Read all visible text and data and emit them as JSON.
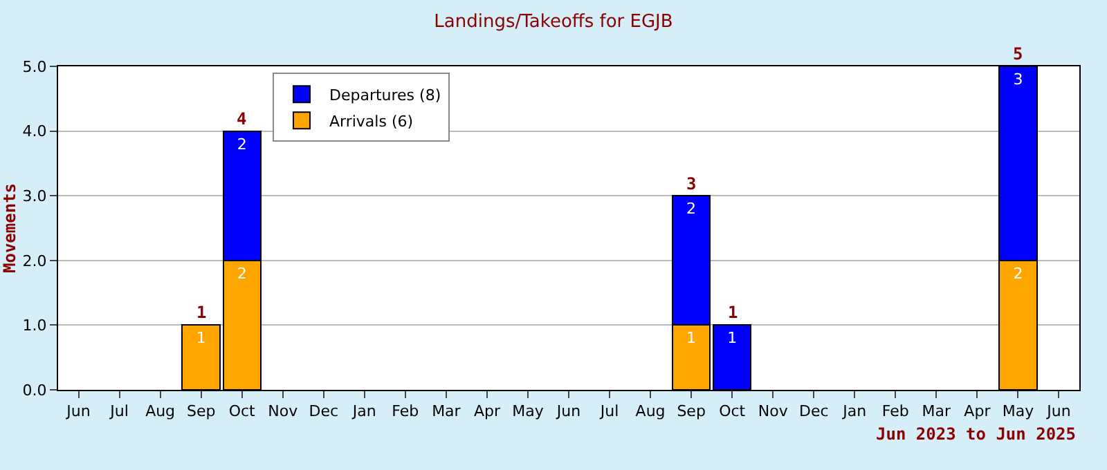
{
  "chart_data": {
    "type": "bar",
    "title": "Landings/Takeoffs for EGJB",
    "ylabel": "Movements",
    "categories": [
      "Jun",
      "Jul",
      "Aug",
      "Sep",
      "Oct",
      "Nov",
      "Dec",
      "Jan",
      "Feb",
      "Mar",
      "Apr",
      "May",
      "Jun",
      "Jul",
      "Aug",
      "Sep",
      "Oct",
      "Nov",
      "Dec",
      "Jan",
      "Feb",
      "Mar",
      "Apr",
      "May",
      "Jun"
    ],
    "series": [
      {
        "name": "Arrivals (6)",
        "color": "#ffa500",
        "values": [
          null,
          null,
          null,
          1,
          2,
          null,
          null,
          null,
          null,
          null,
          null,
          null,
          null,
          null,
          null,
          1,
          null,
          null,
          null,
          null,
          null,
          null,
          null,
          2,
          null
        ]
      },
      {
        "name": "Departures (8)",
        "color": "#0000ff",
        "values": [
          null,
          null,
          null,
          null,
          2,
          null,
          null,
          null,
          null,
          null,
          null,
          null,
          null,
          null,
          null,
          2,
          1,
          null,
          null,
          null,
          null,
          null,
          null,
          3,
          null
        ]
      }
    ],
    "totals": [
      null,
      null,
      null,
      "1",
      "4",
      null,
      null,
      null,
      null,
      null,
      null,
      null,
      null,
      null,
      null,
      "3",
      "1",
      null,
      null,
      null,
      null,
      null,
      null,
      "5",
      null
    ],
    "stacked": true,
    "data_labels": true,
    "grid": "y",
    "legend": "top left",
    "ylim": [
      0,
      5
    ],
    "yticks": [
      {
        "value": 0,
        "label": "0.0"
      },
      {
        "value": 1,
        "label": "1.0"
      },
      {
        "value": 2,
        "label": "2.0"
      },
      {
        "value": 3,
        "label": "3.0"
      },
      {
        "value": 4,
        "label": "4.0"
      },
      {
        "value": 5,
        "label": "5.0"
      }
    ],
    "annotations": [
      "Jun 2023 to Jun 2025"
    ]
  }
}
